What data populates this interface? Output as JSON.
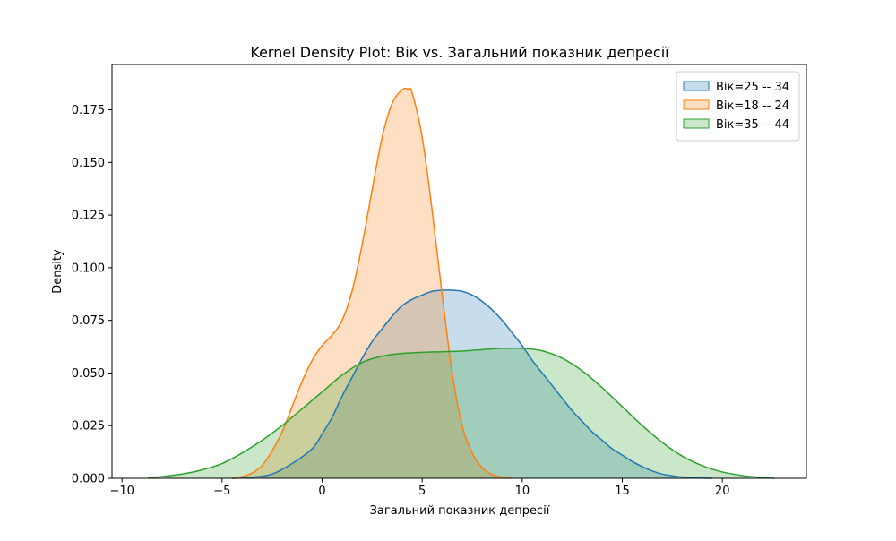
{
  "chart_data": {
    "type": "area",
    "title": "Kernel Density Plot: Вік vs. Загальний показник депресії",
    "xlabel": "Загальний показник депресії",
    "ylabel": "Density",
    "xlim": [
      -10.5,
      24.2
    ],
    "ylim": [
      0,
      0.1965
    ],
    "xticks": [
      -10,
      -5,
      0,
      5,
      10,
      15,
      20
    ],
    "yticks": [
      0.0,
      0.025,
      0.05,
      0.075,
      0.1,
      0.125,
      0.15,
      0.175
    ],
    "ytick_labels": [
      "0.000",
      "0.025",
      "0.050",
      "0.075",
      "0.100",
      "0.125",
      "0.150",
      "0.175"
    ],
    "grid": false,
    "legend_position": "top-right",
    "series": [
      {
        "name": "Вік=25 -- 34",
        "color": "#1f77b4",
        "x": [
          -4.5,
          -3.5,
          -2.5,
          -1.5,
          -0.5,
          0.0,
          0.5,
          1.0,
          1.5,
          2.0,
          2.5,
          3.0,
          3.5,
          4.0,
          4.5,
          5.0,
          5.5,
          6.0,
          6.5,
          7.0,
          7.5,
          8.0,
          8.5,
          9.0,
          9.5,
          10.0,
          10.5,
          11.0,
          11.5,
          12.0,
          12.5,
          13.0,
          13.5,
          14.0,
          14.5,
          15.0,
          15.5,
          16.0,
          16.5,
          17.0,
          17.5,
          18.0,
          18.5,
          19.0,
          19.5
        ],
        "y": [
          0.0,
          0.0005,
          0.002,
          0.007,
          0.014,
          0.021,
          0.029,
          0.039,
          0.048,
          0.057,
          0.065,
          0.071,
          0.077,
          0.082,
          0.085,
          0.087,
          0.0888,
          0.0893,
          0.0893,
          0.0888,
          0.087,
          0.084,
          0.08,
          0.075,
          0.069,
          0.063,
          0.056,
          0.05,
          0.044,
          0.038,
          0.032,
          0.027,
          0.022,
          0.018,
          0.014,
          0.011,
          0.008,
          0.0055,
          0.0035,
          0.002,
          0.0012,
          0.0006,
          0.0003,
          0.0001,
          0.0
        ]
      },
      {
        "name": "Вік=18 -- 24",
        "color": "#ff7f0e",
        "x": [
          -4.5,
          -4.0,
          -3.5,
          -3.0,
          -2.5,
          -2.0,
          -1.5,
          -1.0,
          -0.5,
          0.0,
          0.5,
          1.0,
          1.5,
          2.0,
          2.5,
          3.0,
          3.5,
          4.0,
          4.3,
          4.5,
          5.0,
          5.5,
          6.0,
          6.5,
          7.0,
          7.5,
          8.0,
          8.5,
          9.0,
          9.5
        ],
        "y": [
          0.0,
          0.0008,
          0.0025,
          0.006,
          0.013,
          0.022,
          0.034,
          0.046,
          0.056,
          0.063,
          0.068,
          0.075,
          0.089,
          0.111,
          0.137,
          0.162,
          0.178,
          0.1845,
          0.1848,
          0.183,
          0.162,
          0.127,
          0.087,
          0.05,
          0.025,
          0.012,
          0.005,
          0.0018,
          0.0005,
          0.0
        ]
      },
      {
        "name": "Вік=35 -- 44",
        "color": "#2ca02c",
        "x": [
          -8.7,
          -7.0,
          -6.0,
          -5.0,
          -4.0,
          -3.0,
          -2.0,
          -1.0,
          0.0,
          1.0,
          2.0,
          3.0,
          4.0,
          5.0,
          6.0,
          7.0,
          8.0,
          9.0,
          10.0,
          11.0,
          12.0,
          13.0,
          14.0,
          15.0,
          16.0,
          17.0,
          18.0,
          19.0,
          20.0,
          21.0,
          22.0,
          22.6
        ],
        "y": [
          0.0,
          0.002,
          0.004,
          0.007,
          0.012,
          0.018,
          0.025,
          0.033,
          0.041,
          0.049,
          0.055,
          0.058,
          0.0593,
          0.0598,
          0.0601,
          0.0604,
          0.0611,
          0.0617,
          0.0617,
          0.0605,
          0.057,
          0.051,
          0.043,
          0.034,
          0.025,
          0.017,
          0.0105,
          0.006,
          0.003,
          0.0013,
          0.0004,
          0.0
        ]
      }
    ]
  }
}
